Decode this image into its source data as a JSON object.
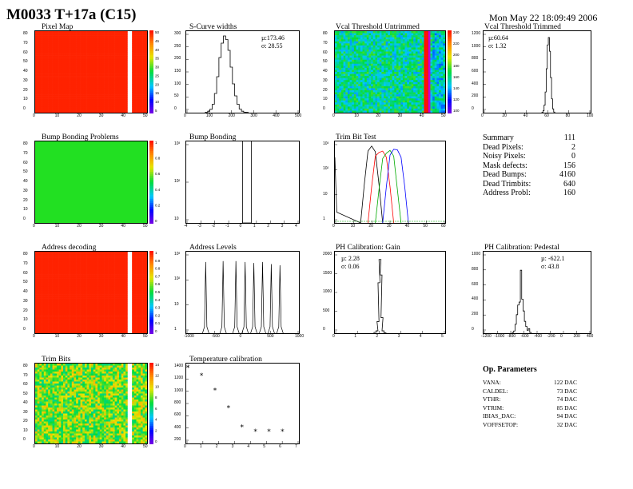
{
  "header": {
    "title": "M0033 T+17a (C15)",
    "date": "Mon May 22 18:09:49 2006"
  },
  "panels": {
    "pixel_map": {
      "title": "Pixel Map",
      "scale_labels": [
        "50",
        "45",
        "40",
        "35",
        "30",
        "25",
        "20",
        "15",
        "10",
        "5"
      ],
      "y_ticks": [
        "80",
        "70",
        "60",
        "50",
        "40",
        "30",
        "20",
        "10",
        "0"
      ],
      "x_ticks": [
        "0",
        "10",
        "20",
        "30",
        "40",
        "50"
      ]
    },
    "scurve": {
      "title": "S-Curve widths",
      "mu": "µ:173.46",
      "sigma": "σ: 28.55",
      "y_ticks": [
        "300",
        "250",
        "200",
        "150",
        "100",
        "50",
        "0"
      ],
      "x_ticks": [
        "0",
        "100",
        "200",
        "300",
        "400",
        "500"
      ]
    },
    "vcal_untrimmed": {
      "title": "Vcal Threshold Untrimmed",
      "scale_labels": [
        "240",
        "220",
        "200",
        "180",
        "160",
        "140",
        "120",
        "100"
      ],
      "y_ticks": [
        "80",
        "70",
        "60",
        "50",
        "40",
        "30",
        "20",
        "10",
        "0"
      ],
      "x_ticks": [
        "0",
        "10",
        "20",
        "30",
        "40",
        "50"
      ]
    },
    "vcal_trimmed": {
      "title": "Vcal Threshold Trimmed",
      "mu": "µ:60.64",
      "sigma": "σ: 1.32",
      "y_ticks": [
        "1200",
        "1000",
        "800",
        "600",
        "400",
        "200",
        "0"
      ],
      "x_ticks": [
        "0",
        "20",
        "40",
        "60",
        "80",
        "100"
      ]
    },
    "bump_map": {
      "title": "Bump Bonding Problems",
      "scale_labels": [
        "1",
        "0.8",
        "0.6",
        "0.4",
        "0.2",
        "0"
      ],
      "y_ticks": [
        "80",
        "70",
        "60",
        "50",
        "40",
        "30",
        "20",
        "10",
        "0"
      ],
      "x_ticks": [
        "0",
        "10",
        "20",
        "30",
        "40",
        "50"
      ]
    },
    "bump_hist": {
      "title": "Bump Bonding",
      "y_ticks": [
        "10³",
        "10²",
        "10"
      ],
      "x_ticks": [
        "-4",
        "-3",
        "-2",
        "-1",
        "0",
        "1",
        "2",
        "3",
        "4"
      ]
    },
    "trim_bit": {
      "title": "Trim Bit Test",
      "y_ticks": [
        "10³",
        "10²",
        "10",
        "1"
      ],
      "x_ticks": [
        "0",
        "10",
        "20",
        "30",
        "40",
        "50",
        "60"
      ]
    },
    "address_map": {
      "title": "Address decoding",
      "scale_labels": [
        "1",
        "0.9",
        "0.8",
        "0.7",
        "0.6",
        "0.5",
        "0.4",
        "0.3",
        "0.2",
        "0.1",
        "0"
      ],
      "y_ticks": [
        "80",
        "70",
        "60",
        "50",
        "40",
        "30",
        "20",
        "10",
        "0"
      ],
      "x_ticks": [
        "0",
        "10",
        "20",
        "30",
        "40",
        "50"
      ]
    },
    "address_levels": {
      "title": "Address Levels",
      "y_ticks": [
        "10³",
        "10²",
        "10",
        "1"
      ],
      "x_ticks": [
        "-1000",
        "-500",
        "0",
        "500",
        "1000"
      ]
    },
    "ph_gain": {
      "title": "PH Calibration: Gain",
      "mu": "µ: 2.28",
      "sigma": "σ: 0.06",
      "y_ticks": [
        "2000",
        "1500",
        "1000",
        "500",
        "0"
      ],
      "x_ticks": [
        "0",
        "1",
        "2",
        "3",
        "4",
        "5"
      ]
    },
    "ph_pedestal": {
      "title": "PH Calibration: Pedestal",
      "mu": "µ: -622.1",
      "sigma": "σ: 43.8",
      "y_ticks": [
        "1000",
        "800",
        "600",
        "400",
        "200",
        "0"
      ],
      "x_ticks": [
        "-1200",
        "-1000",
        "-800",
        "-600",
        "-400",
        "-200",
        "0",
        "200",
        "400"
      ]
    },
    "trim_bits": {
      "title": "Trim Bits",
      "scale_labels": [
        "14",
        "12",
        "10",
        "8",
        "6",
        "4",
        "2",
        "0"
      ],
      "y_ticks": [
        "80",
        "70",
        "60",
        "50",
        "40",
        "30",
        "20",
        "10",
        "0"
      ],
      "x_ticks": [
        "0",
        "10",
        "20",
        "30",
        "40",
        "50"
      ]
    },
    "temp_cal": {
      "title": "Temperature calibration",
      "y_ticks": [
        "1400",
        "1200",
        "1000",
        "800",
        "600",
        "400",
        "200"
      ],
      "x_ticks": [
        "0",
        "1",
        "2",
        "3",
        "4",
        "5",
        "6",
        "7"
      ]
    }
  },
  "summary": {
    "rows": [
      {
        "label": "Summary",
        "value": "111"
      },
      {
        "label": "Dead Pixels:",
        "value": "2"
      },
      {
        "label": "Noisy Pixels:",
        "value": "0"
      },
      {
        "label": "Mask defects:",
        "value": "156"
      },
      {
        "label": "Dead Bumps:",
        "value": "4160"
      },
      {
        "label": "Dead Trimbits:",
        "value": "640"
      },
      {
        "label": "Address Probl:",
        "value": "160"
      }
    ]
  },
  "op_params": {
    "heading": "Op. Parameters",
    "rows": [
      {
        "label": "VANA:",
        "value": "122 DAC"
      },
      {
        "label": "CALDEL:",
        "value": "73 DAC"
      },
      {
        "label": "VTHR:",
        "value": "74 DAC"
      },
      {
        "label": "VTRIM:",
        "value": "85 DAC"
      },
      {
        "label": "IBIAS_DAC:",
        "value": "94 DAC"
      },
      {
        "label": "VOFFSETOP:",
        "value": "32 DAC"
      }
    ]
  },
  "colors": {
    "histogram_line": "#000000",
    "pixel_red": "#ff2200",
    "bump_green": "#22e022",
    "trim_series": [
      "#000000",
      "#ff0000",
      "#00aa00",
      "#0000ff"
    ]
  },
  "chart_data": [
    {
      "type": "heatmap",
      "title": "Pixel Map",
      "x_range": [
        0,
        52
      ],
      "y_range": [
        0,
        80
      ],
      "dominant_value": 50,
      "dead_column": 43
    },
    {
      "type": "bar",
      "title": "S-Curve widths",
      "x_range": [
        0,
        500
      ],
      "y_range": [
        0,
        340
      ],
      "x": [
        90,
        100,
        110,
        120,
        130,
        140,
        150,
        160,
        170,
        180,
        190,
        200,
        210,
        220,
        230,
        240,
        250,
        260,
        270
      ],
      "values": [
        2,
        6,
        14,
        35,
        80,
        150,
        230,
        290,
        320,
        305,
        260,
        190,
        120,
        70,
        35,
        15,
        6,
        2,
        1
      ]
    },
    {
      "type": "heatmap",
      "title": "Vcal Threshold Untrimmed",
      "x_range": [
        0,
        52
      ],
      "y_range": [
        0,
        80
      ],
      "z_range": [
        90,
        245
      ]
    },
    {
      "type": "bar",
      "title": "Vcal Threshold Trimmed",
      "x_range": [
        0,
        100
      ],
      "y_range": [
        0,
        1300
      ],
      "x": [
        55,
        56,
        57,
        58,
        59,
        60,
        61,
        62,
        63,
        64,
        65,
        66
      ],
      "values": [
        5,
        30,
        120,
        330,
        700,
        1080,
        1200,
        980,
        560,
        220,
        60,
        10
      ]
    },
    {
      "type": "heatmap",
      "title": "Bump Bonding Problems",
      "x_range": [
        0,
        52
      ],
      "y_range": [
        0,
        80
      ],
      "dominant_value": 0.5
    },
    {
      "type": "bar",
      "title": "Bump Bonding",
      "log_y": true,
      "x_range": [
        -4.5,
        4.5
      ],
      "y_range": [
        1,
        4000
      ],
      "x": [
        0.0,
        0.7
      ],
      "values": [
        4160,
        4160
      ]
    },
    {
      "type": "line",
      "title": "Trim Bit Test",
      "log_y": true,
      "x_range": [
        0,
        60
      ],
      "y_range": [
        1,
        4000
      ],
      "series": [
        {
          "x": [
            0,
            1,
            14,
            16,
            18,
            20,
            22,
            24,
            26
          ],
          "values": [
            800,
            3,
            1,
            50,
            1500,
            2500,
            1400,
            50,
            1
          ]
        },
        {
          "x": [
            18,
            20,
            22,
            24,
            26,
            28,
            30,
            32
          ],
          "values": [
            1,
            40,
            900,
            1300,
            1500,
            800,
            40,
            1
          ]
        },
        {
          "x": [
            22,
            24,
            26,
            28,
            30,
            32,
            34,
            36
          ],
          "values": [
            1,
            30,
            700,
            1200,
            1600,
            900,
            30,
            1
          ]
        },
        {
          "x": [
            26,
            28,
            30,
            32,
            34,
            36,
            38,
            40
          ],
          "values": [
            1,
            40,
            1000,
            1800,
            1700,
            800,
            40,
            1
          ]
        }
      ]
    },
    {
      "type": "heatmap",
      "title": "Address decoding",
      "x_range": [
        0,
        52
      ],
      "y_range": [
        0,
        80
      ],
      "dominant_value": 1
    },
    {
      "type": "bar",
      "title": "Address Levels",
      "log_y": true,
      "x_range": [
        -1200,
        1000
      ],
      "y_range": [
        0.5,
        3000
      ],
      "x": [
        -820,
        -480,
        -230,
        -50,
        120,
        290,
        460,
        630
      ],
      "values": [
        1000,
        1100,
        1100,
        1000,
        900,
        1000,
        800,
        700
      ]
    },
    {
      "type": "bar",
      "title": "PH Calibration: Gain",
      "x_range": [
        0,
        5.5
      ],
      "y_range": [
        0,
        2100
      ],
      "x": [
        2.0,
        2.1,
        2.15,
        2.2,
        2.25,
        2.3,
        2.35,
        2.4,
        2.5
      ],
      "values": [
        20,
        60,
        300,
        1300,
        1900,
        1500,
        400,
        60,
        10
      ]
    },
    {
      "type": "bar",
      "title": "PH Calibration: Pedestal",
      "x_range": [
        -1200,
        400
      ],
      "y_range": [
        0,
        1100
      ],
      "x": [
        -760,
        -740,
        -720,
        -700,
        -680,
        -660,
        -640,
        -620,
        -600,
        -580,
        -560,
        -540,
        -520,
        -500
      ],
      "values": [
        10,
        30,
        120,
        250,
        380,
        420,
        850,
        460,
        300,
        160,
        90,
        40,
        60,
        10
      ]
    },
    {
      "type": "heatmap",
      "title": "Trim Bits",
      "x_range": [
        0,
        52
      ],
      "y_range": [
        0,
        80
      ],
      "z_range": [
        0,
        15
      ]
    },
    {
      "type": "scatter",
      "title": "Temperature calibration",
      "x_range": [
        0,
        8
      ],
      "y_range": [
        100,
        1450
      ],
      "x": [
        0,
        1,
        2,
        3,
        4,
        5,
        6,
        7
      ],
      "values": [
        1380,
        1250,
        1000,
        700,
        380,
        300,
        300,
        300
      ]
    }
  ]
}
